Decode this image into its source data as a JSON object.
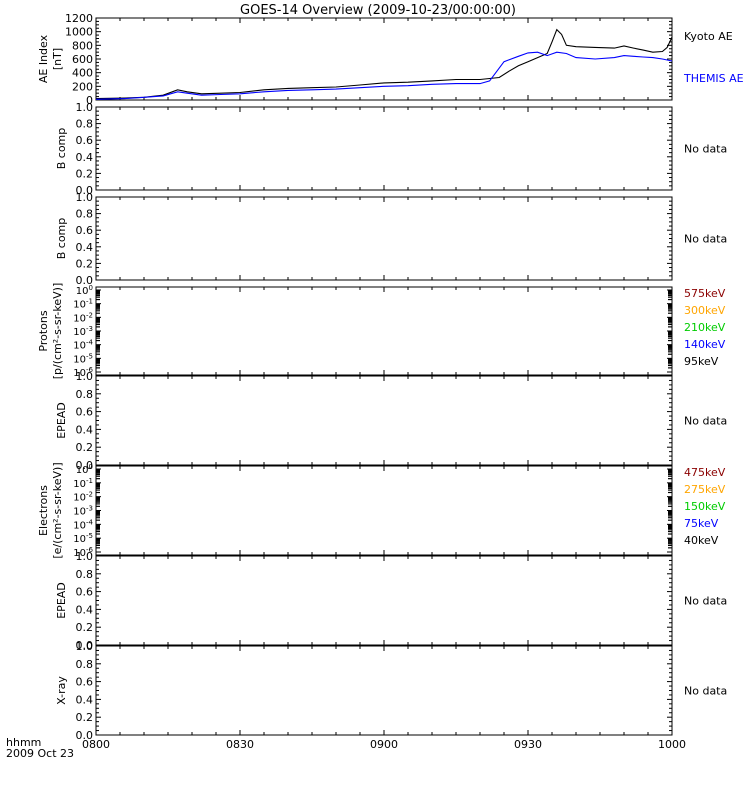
{
  "title": "GOES-14 Overview (2009-10-23/00:00:00)",
  "footer": {
    "line1": "hhmm",
    "line2": "2009 Oct 23"
  },
  "x_ticks": [
    "0800",
    "0830",
    "0900",
    "0930",
    "1000"
  ],
  "chart_data": [
    {
      "type": "line",
      "ylabel": [
        "AE Index",
        "[nT]"
      ],
      "ylim": [
        0,
        1200
      ],
      "yticks": [
        0,
        200,
        400,
        600,
        800,
        1000,
        1200
      ],
      "x_range_minutes": [
        0,
        120
      ],
      "series": [
        {
          "name": "Kyoto AE",
          "color": "#000000",
          "x": [
            0,
            6,
            10,
            14,
            17,
            19,
            22,
            26,
            30,
            35,
            40,
            45,
            50,
            55,
            60,
            65,
            70,
            75,
            80,
            84,
            86,
            88,
            90,
            92,
            94,
            95,
            96,
            97,
            98,
            100,
            104,
            108,
            110,
            112,
            114,
            116,
            118,
            119,
            120
          ],
          "y": [
            20,
            30,
            40,
            70,
            150,
            120,
            90,
            100,
            110,
            150,
            170,
            180,
            190,
            220,
            250,
            260,
            280,
            300,
            300,
            330,
            420,
            500,
            560,
            620,
            680,
            850,
            1030,
            960,
            800,
            780,
            770,
            760,
            790,
            760,
            730,
            700,
            710,
            770,
            920
          ]
        },
        {
          "name": "THEMIS AE",
          "color": "#0000ff",
          "x": [
            0,
            6,
            10,
            14,
            17,
            19,
            22,
            26,
            30,
            35,
            40,
            45,
            50,
            55,
            60,
            65,
            70,
            75,
            80,
            82,
            85,
            88,
            90,
            92,
            94,
            96,
            98,
            100,
            104,
            108,
            110,
            112,
            114,
            116,
            118,
            120
          ],
          "y": [
            10,
            20,
            40,
            60,
            120,
            100,
            70,
            80,
            90,
            120,
            140,
            150,
            160,
            180,
            200,
            210,
            230,
            240,
            240,
            280,
            560,
            640,
            690,
            700,
            650,
            700,
            680,
            620,
            600,
            620,
            650,
            640,
            630,
            620,
            600,
            570
          ]
        }
      ]
    },
    {
      "type": "line",
      "ylabel": [
        "B comp"
      ],
      "ylim": [
        0,
        1
      ],
      "yticks": [
        "0.0",
        "0.2",
        "0.4",
        "0.6",
        "0.8",
        "1.0"
      ],
      "no_data_label": "No data"
    },
    {
      "type": "line",
      "ylabel": [
        "B comp"
      ],
      "ylim": [
        0,
        1
      ],
      "yticks": [
        "0.0",
        "0.2",
        "0.4",
        "0.6",
        "0.8",
        "1.0"
      ],
      "no_data_label": "No data"
    },
    {
      "type": "line",
      "scale": "log",
      "ylabel": [
        "Protons",
        "[p/(cm²-s-sr-keV)]"
      ],
      "ylim": [
        1e-06,
        1
      ],
      "yticks": [
        {
          "b": "10",
          "e": "-6"
        },
        {
          "b": "10",
          "e": "-5"
        },
        {
          "b": "10",
          "e": "-4"
        },
        {
          "b": "10",
          "e": "-3"
        },
        {
          "b": "10",
          "e": "-2"
        },
        {
          "b": "10",
          "e": "-1"
        },
        {
          "b": "10",
          "e": "0"
        }
      ],
      "legend": [
        {
          "name": "575keV",
          "color": "#8b0000"
        },
        {
          "name": "300keV",
          "color": "#ffa500"
        },
        {
          "name": "210keV",
          "color": "#00cc00"
        },
        {
          "name": "140keV",
          "color": "#0000ff"
        },
        {
          "name": "95keV",
          "color": "#000000"
        }
      ]
    },
    {
      "type": "line",
      "ylabel": [
        "EPEAD"
      ],
      "ylim": [
        0,
        1
      ],
      "yticks": [
        "0.0",
        "0.2",
        "0.4",
        "0.6",
        "0.8",
        "1.0"
      ],
      "no_data_label": "No data"
    },
    {
      "type": "line",
      "scale": "log",
      "ylabel": [
        "Electrons",
        "[e/(cm²-s-sr-keV)]"
      ],
      "ylim": [
        1e-06,
        1
      ],
      "yticks": [
        {
          "b": "10",
          "e": "-6"
        },
        {
          "b": "10",
          "e": "-5"
        },
        {
          "b": "10",
          "e": "-4"
        },
        {
          "b": "10",
          "e": "-3"
        },
        {
          "b": "10",
          "e": "-2"
        },
        {
          "b": "10",
          "e": "-1"
        },
        {
          "b": "10",
          "e": "0"
        }
      ],
      "legend": [
        {
          "name": "475keV",
          "color": "#8b0000"
        },
        {
          "name": "275keV",
          "color": "#ffa500"
        },
        {
          "name": "150keV",
          "color": "#00cc00"
        },
        {
          "name": "75keV",
          "color": "#0000ff"
        },
        {
          "name": "40keV",
          "color": "#000000"
        }
      ]
    },
    {
      "type": "line",
      "ylabel": [
        "EPEAD"
      ],
      "ylim": [
        0,
        1
      ],
      "yticks": [
        "0.0",
        "0.2",
        "0.4",
        "0.6",
        "0.8",
        "1.0"
      ],
      "no_data_label": "No data"
    },
    {
      "type": "line",
      "ylabel": [
        "X-ray"
      ],
      "ylim": [
        0,
        1
      ],
      "yticks": [
        "0.0",
        "0.2",
        "0.4",
        "0.6",
        "0.8",
        "1.0"
      ],
      "no_data_label": "No data"
    }
  ]
}
